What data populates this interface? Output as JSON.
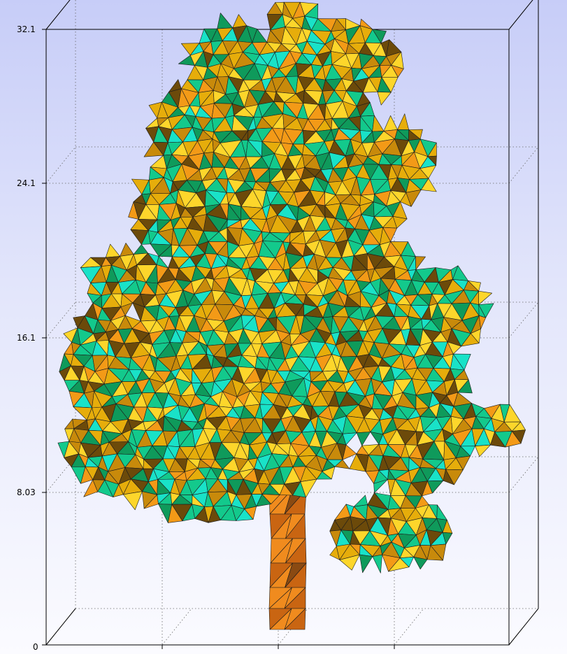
{
  "viewer": {
    "axes": {
      "y_ticks": [
        "32.1",
        "24.1",
        "16.1",
        "8.03",
        "0"
      ]
    }
  },
  "model": {
    "name": "tree",
    "style": "faceted-triangle-mesh",
    "colors": {
      "background_top": "#c7cdf8",
      "background_bottom": "#fbfbff",
      "foliage": [
        "#0f9a5b",
        "#13c98c",
        "#19e2c8",
        "#e6ad0b",
        "#fdd62b",
        "#c88a0b",
        "#6c4a0a",
        "#f39a17"
      ],
      "trunk": [
        "#f08b1e",
        "#c96512",
        "#8a4a12"
      ],
      "edges": "#1c1c1c",
      "box": "#000000"
    }
  }
}
